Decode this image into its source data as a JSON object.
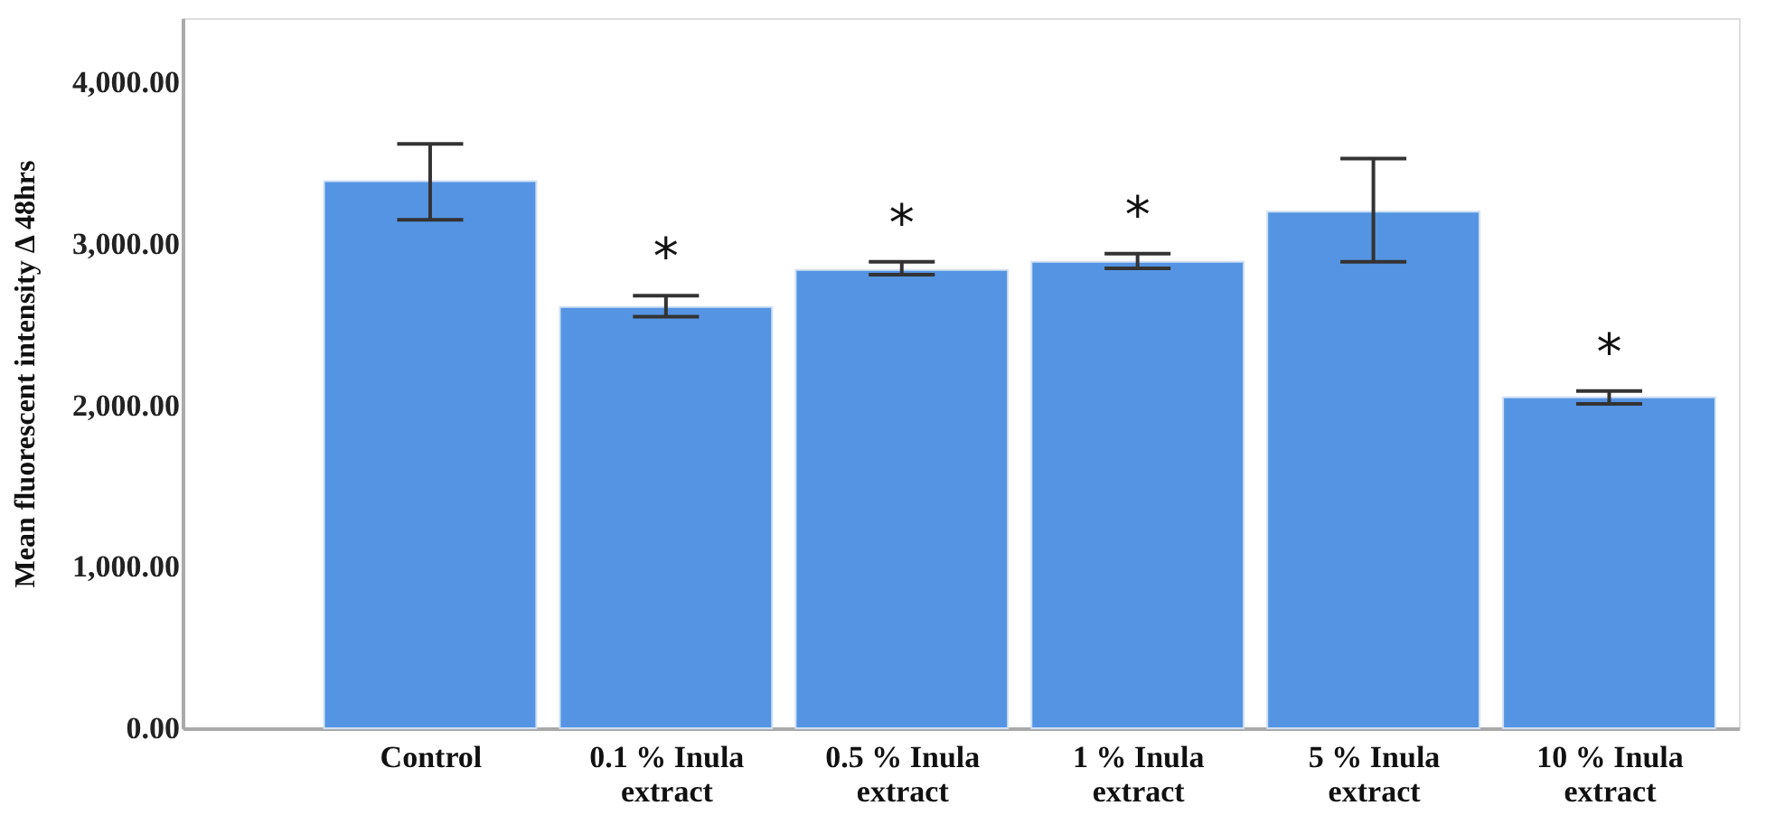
{
  "chart_data": {
    "type": "bar",
    "ylabel": "Mean fluorescent intensity Δ 48hrs",
    "categories": [
      "Control",
      "0.1 % Inula extract",
      "0.5 % Inula extract",
      "1 % Inula extract",
      "5 % Inula extract",
      "10 % Inula extract"
    ],
    "values": [
      3390,
      2610,
      2840,
      2890,
      3200,
      2050
    ],
    "errors": [
      [
        3150,
        3620
      ],
      [
        2550,
        2680
      ],
      [
        2810,
        2890
      ],
      [
        2850,
        2940
      ],
      [
        2890,
        3530
      ],
      [
        2010,
        2090
      ]
    ],
    "color": "#5594e2",
    "ylim": [
      0,
      4400
    ],
    "yticks": [
      {
        "value": 0,
        "label": "0.00"
      },
      {
        "value": 1000,
        "label": "1,000.00"
      },
      {
        "value": 2000,
        "label": "2,000.00"
      },
      {
        "value": 3000,
        "label": "3,000.00"
      },
      {
        "value": 4000,
        "label": "4,000.00"
      }
    ],
    "annotations": [
      {
        "text": "*",
        "x": "0.1 % Inula extract",
        "y": 2680
      },
      {
        "text": "*",
        "x": "0.5 % Inula extract",
        "y": 2890
      },
      {
        "text": "*",
        "x": "1 % Inula extract",
        "y": 2940
      },
      {
        "text": "*",
        "x": "10 % Inula extract",
        "y": 2090
      }
    ],
    "grid": false
  }
}
